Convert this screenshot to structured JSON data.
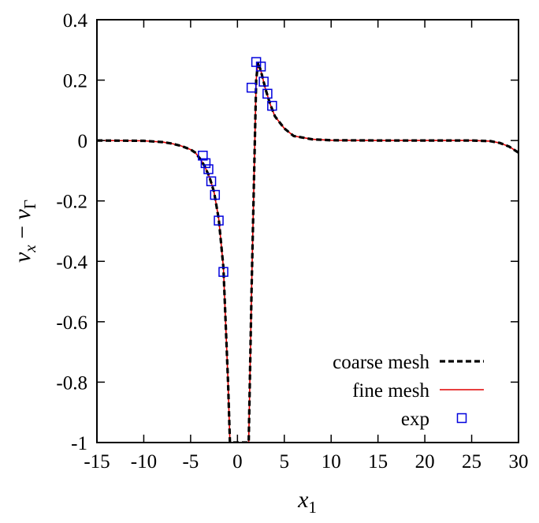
{
  "chart_data": {
    "type": "line",
    "title": "",
    "xlabel": "x",
    "xlabel_sub": "1",
    "ylabel_v": "v",
    "ylabel_sub1": "x",
    "ylabel_minus": " − ",
    "ylabel_sub2": "Γ",
    "xlim": [
      -15,
      30
    ],
    "ylim": [
      -1,
      0.4
    ],
    "xticks": [
      -15,
      -10,
      -5,
      0,
      5,
      10,
      15,
      20,
      25,
      30
    ],
    "yticks": [
      0.4,
      0.2,
      0,
      -0.2,
      -0.4,
      -0.6,
      -0.8,
      -1
    ],
    "ytick_labels": [
      "0.4",
      "0.2",
      "0",
      "-0.2",
      "-0.4",
      "-0.6",
      "-0.8",
      "-1"
    ],
    "xtick_labels": [
      "-15",
      "-10",
      "-5",
      "0",
      "5",
      "10",
      "15",
      "20",
      "25",
      "30"
    ],
    "grid": false,
    "legend_position": "bottom-right",
    "series": [
      {
        "name": "coarse mesh",
        "style": "dashed",
        "color": "#000000",
        "x": [
          -15,
          -10,
          -8,
          -7,
          -6,
          -5,
          -4.5,
          -4,
          -3.5,
          -3,
          -2.5,
          -2,
          -1.5,
          -1,
          -0.8,
          1.2,
          1.5,
          2,
          2.2,
          2.5,
          3,
          3.5,
          4,
          5,
          6,
          8,
          10,
          15,
          20,
          25,
          27,
          28,
          29,
          30
        ],
        "y": [
          0,
          -0.001,
          -0.005,
          -0.01,
          -0.018,
          -0.03,
          -0.04,
          -0.06,
          -0.085,
          -0.12,
          -0.17,
          -0.26,
          -0.42,
          -0.8,
          -1.0,
          -1.0,
          -0.5,
          0.2,
          0.26,
          0.23,
          0.17,
          0.12,
          0.08,
          0.04,
          0.015,
          0.004,
          0.001,
          0,
          0,
          0,
          -0.002,
          -0.008,
          -0.02,
          -0.04
        ]
      },
      {
        "name": "fine mesh",
        "style": "solid",
        "color": "#e00000",
        "x": [
          -15,
          -10,
          -8,
          -7,
          -6,
          -5,
          -4.5,
          -4,
          -3.5,
          -3,
          -2.5,
          -2,
          -1.5,
          -1,
          -0.8,
          1.2,
          1.5,
          2,
          2.2,
          2.5,
          3,
          3.5,
          4,
          5,
          6,
          8,
          10,
          15,
          20,
          25,
          27,
          28,
          29,
          30
        ],
        "y": [
          0,
          -0.001,
          -0.005,
          -0.01,
          -0.018,
          -0.03,
          -0.04,
          -0.06,
          -0.085,
          -0.12,
          -0.17,
          -0.26,
          -0.42,
          -0.8,
          -1.0,
          -1.0,
          -0.5,
          0.2,
          0.26,
          0.23,
          0.17,
          0.12,
          0.08,
          0.04,
          0.015,
          0.004,
          0.001,
          0,
          0,
          0,
          -0.002,
          -0.008,
          -0.02,
          -0.04
        ]
      },
      {
        "name": "exp",
        "style": "markers",
        "marker": "square",
        "color": "#0000dd",
        "x": [
          -3.7,
          -3.4,
          -3.1,
          -2.8,
          -2.4,
          -2.0,
          -1.5,
          1.5,
          2.0,
          2.5,
          2.8,
          3.2,
          3.7
        ],
        "y": [
          -0.05,
          -0.075,
          -0.095,
          -0.135,
          -0.18,
          -0.265,
          -0.435,
          0.175,
          0.26,
          0.245,
          0.195,
          0.155,
          0.115
        ]
      }
    ]
  }
}
